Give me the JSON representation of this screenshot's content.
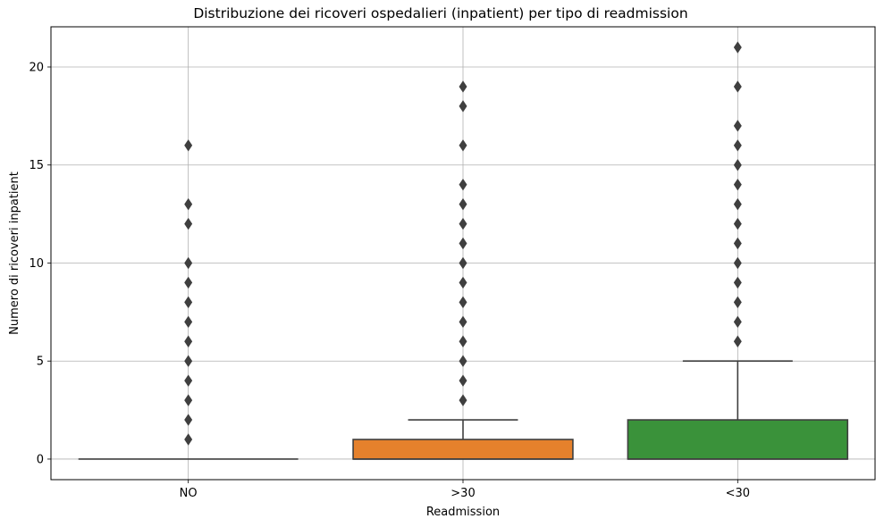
{
  "chart_data": {
    "type": "box",
    "title": "Distribuzione dei ricoveri ospedalieri (inpatient) per tipo di readmission",
    "xlabel": "Readmission",
    "ylabel": "Numero di ricoveri inpatient",
    "ylim": [
      -1.05,
      22.05
    ],
    "yticks": [
      0,
      5,
      10,
      15,
      20
    ],
    "grid": true,
    "categories": [
      "NO",
      ">30",
      "<30"
    ],
    "series": [
      {
        "category": "NO",
        "color": "#3a75a8",
        "whisker_low": 0,
        "q1": 0,
        "median": 0,
        "q3": 0,
        "whisker_high": 0,
        "outliers": [
          1,
          2,
          3,
          4,
          5,
          6,
          7,
          8,
          9,
          10,
          12,
          13,
          16
        ]
      },
      {
        "category": ">30",
        "color": "#e5812c",
        "whisker_low": 0,
        "q1": 0,
        "median": 0,
        "q3": 1,
        "whisker_high": 2,
        "outliers": [
          3,
          4,
          5,
          6,
          7,
          8,
          9,
          10,
          11,
          12,
          13,
          14,
          16,
          18,
          19
        ]
      },
      {
        "category": "<30",
        "color": "#3a923a",
        "whisker_low": 0,
        "q1": 0,
        "median": 0,
        "q3": 2,
        "whisker_high": 5,
        "outliers": [
          6,
          7,
          8,
          9,
          10,
          11,
          12,
          13,
          14,
          15,
          16,
          17,
          19,
          21
        ]
      }
    ]
  }
}
